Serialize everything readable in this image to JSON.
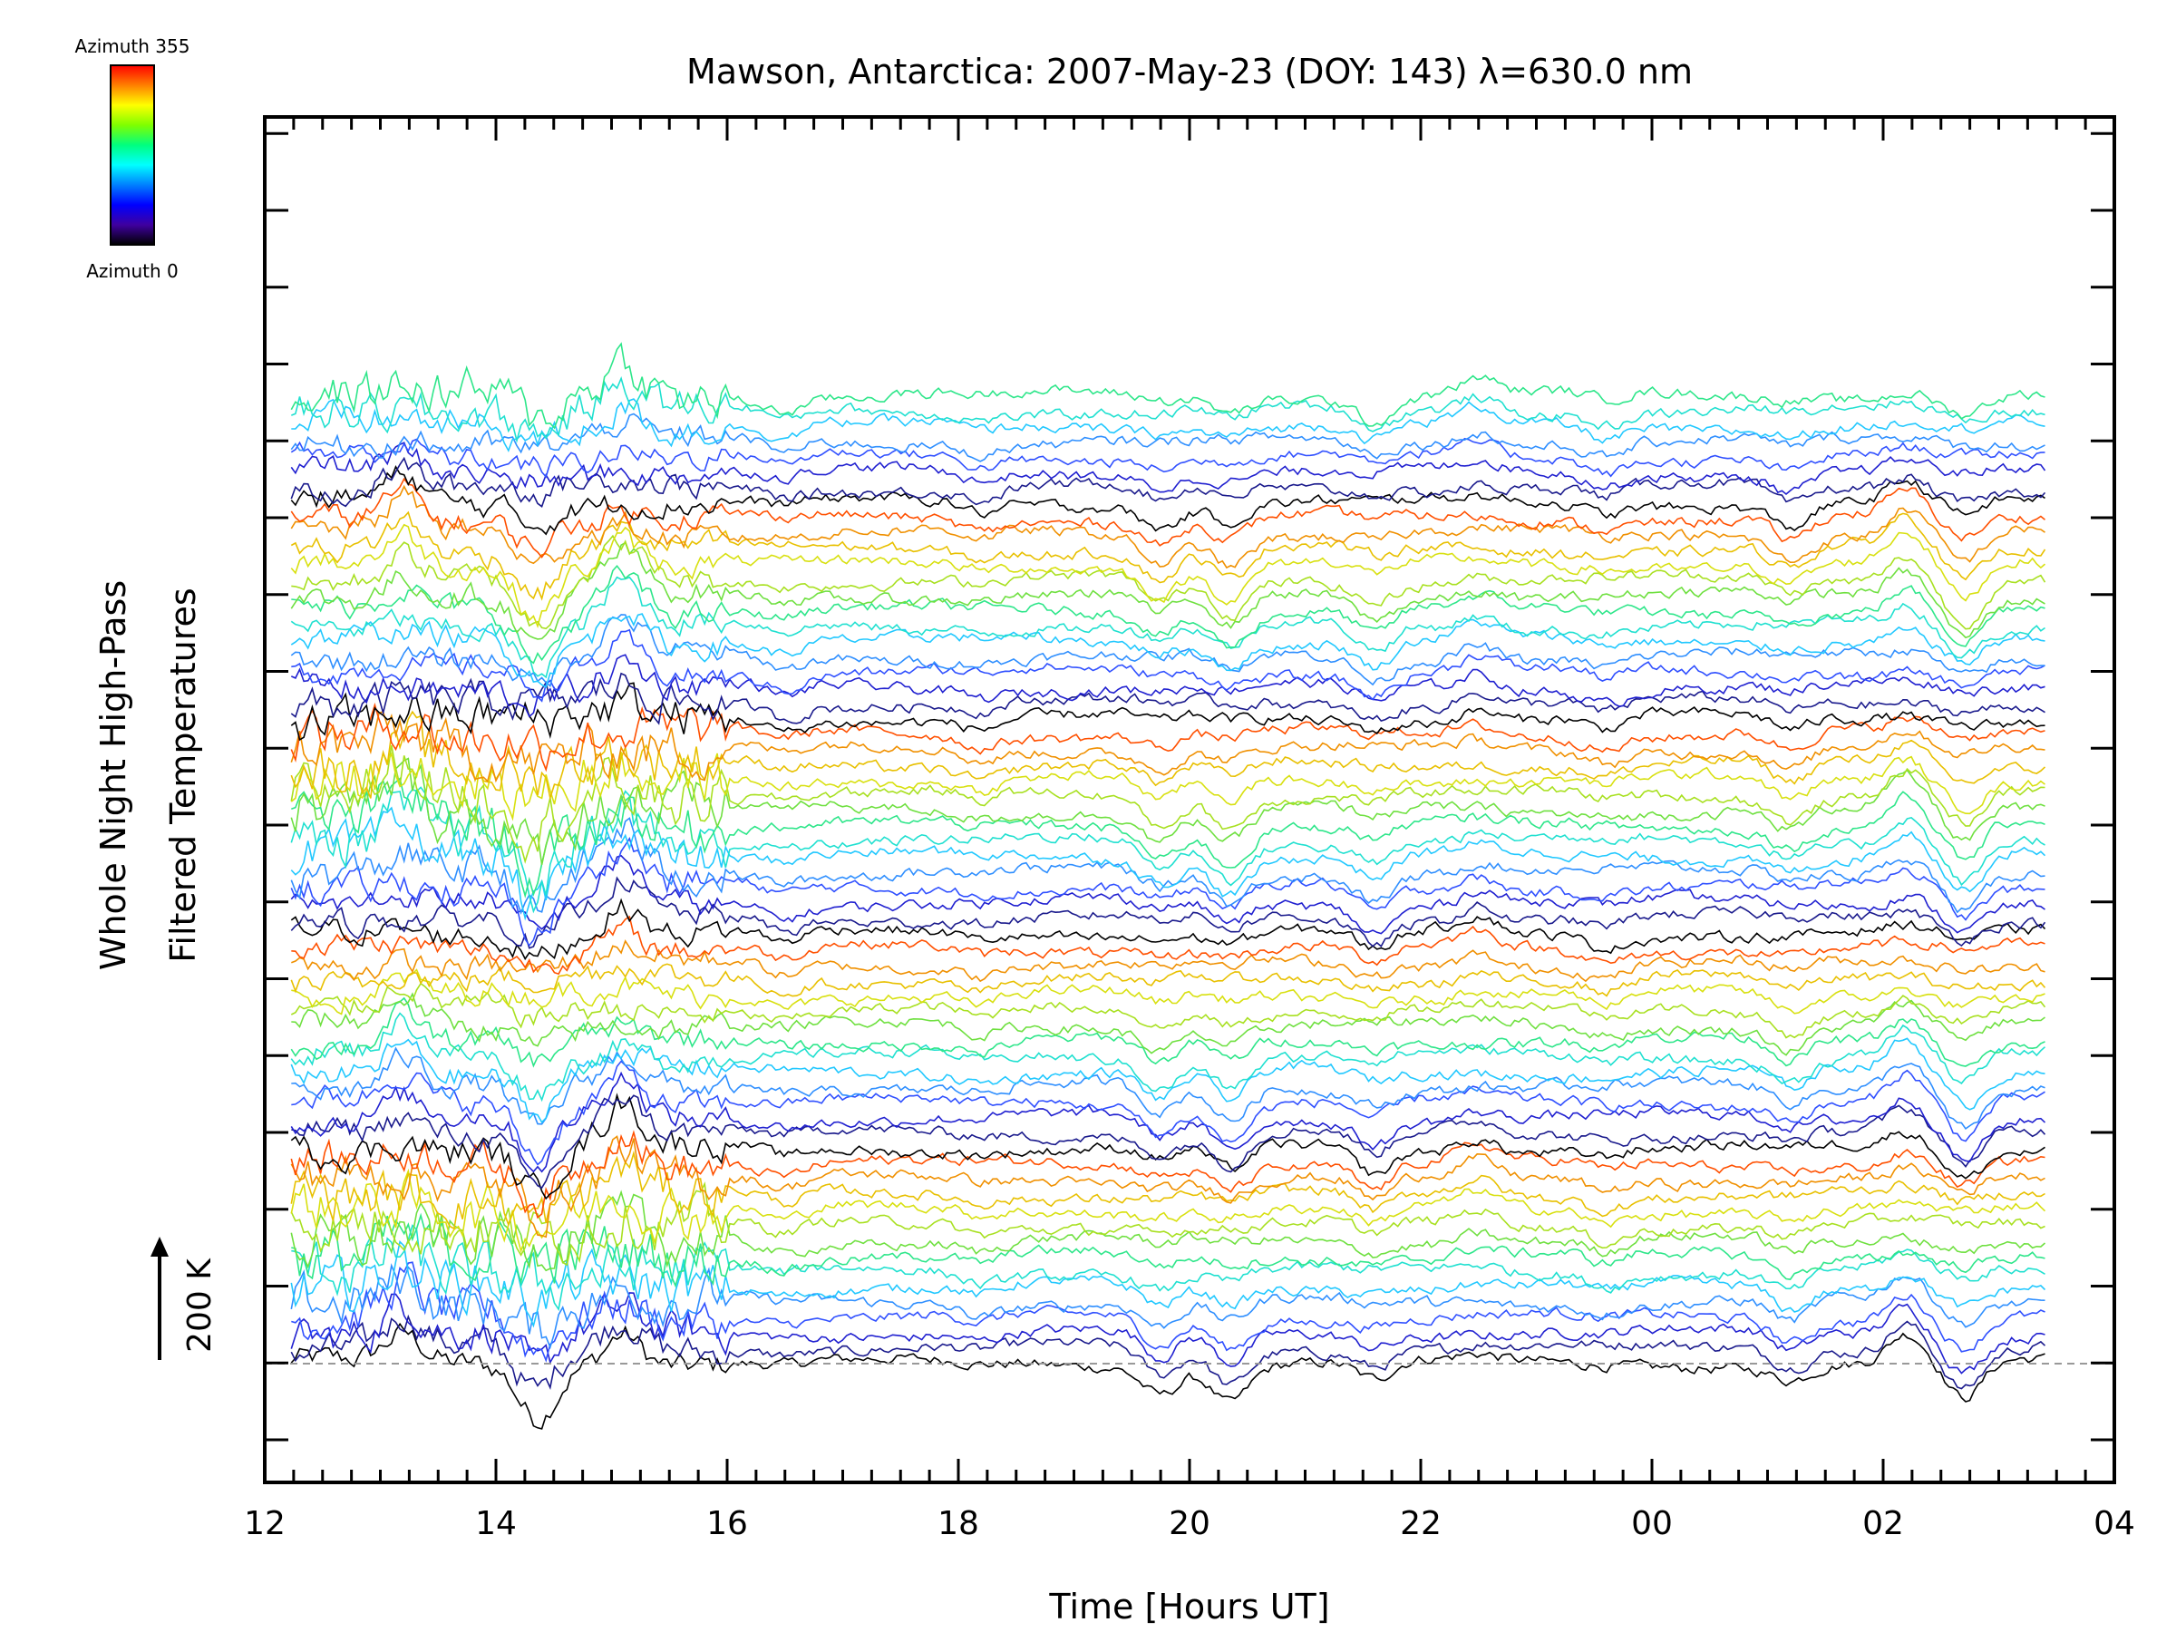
{
  "chart_data": {
    "type": "line",
    "title": "Mawson, Antarctica: 2007-May-23 (DOY: 143) λ=630.0 nm",
    "xlabel": "Time [Hours UT]",
    "ylabel_line1": "Whole Night High-Pass",
    "ylabel_line2": "Filtered Temperatures",
    "scale_label": "200 K",
    "colorbar": {
      "top_label": "Azimuth 355",
      "bottom_label": "Azimuth 0",
      "colors": [
        "#ff0000",
        "#ff7f00",
        "#ffff00",
        "#7fff00",
        "#00ff7f",
        "#00ffff",
        "#0080ff",
        "#0000ff",
        "#3f00a0",
        "#000000"
      ]
    },
    "x_ticks": [
      "12",
      "14",
      "16",
      "18",
      "20",
      "22",
      "00",
      "02",
      "04"
    ],
    "x_range_hours": [
      12,
      28
    ],
    "data_range_hours": [
      12.23,
      27.4
    ],
    "n_series": 64,
    "series_spacing_K": 66.7,
    "baseline_dashed": true,
    "disturbances": [
      {
        "t": 13.2,
        "amp": 1.0
      },
      {
        "t": 14.35,
        "amp": -1.6
      },
      {
        "t": 15.1,
        "amp": 1.3
      },
      {
        "t": 16.5,
        "amp": -0.4
      },
      {
        "t": 18.2,
        "amp": -0.35
      },
      {
        "t": 19.75,
        "amp": -0.9
      },
      {
        "t": 20.35,
        "amp": -1.1
      },
      {
        "t": 21.6,
        "amp": -0.8
      },
      {
        "t": 22.5,
        "amp": 0.5
      },
      {
        "t": 23.6,
        "amp": -0.4
      },
      {
        "t": 25.2,
        "amp": -0.7
      },
      {
        "t": 26.2,
        "amp": 0.9
      },
      {
        "t": 26.7,
        "amp": -1.2
      }
    ]
  }
}
